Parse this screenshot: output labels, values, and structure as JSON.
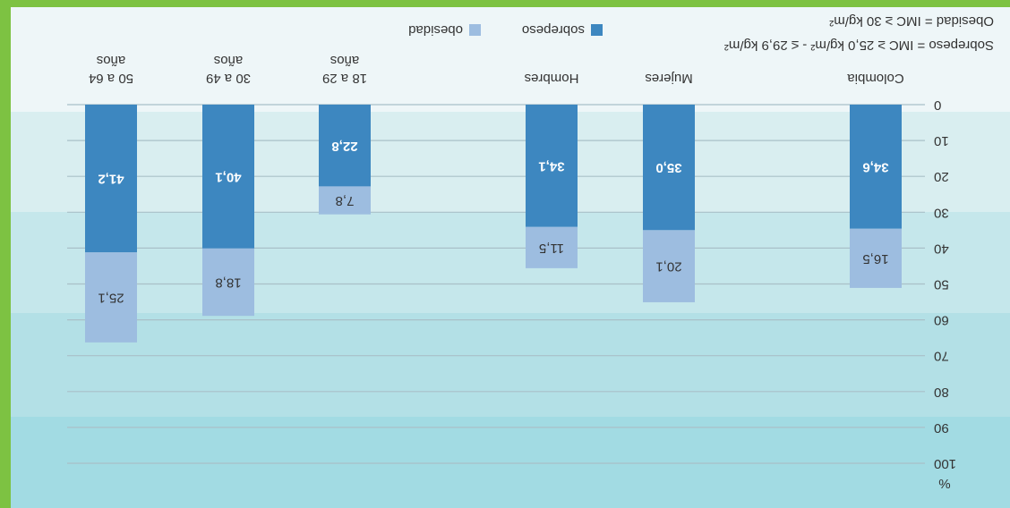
{
  "chart_data": {
    "type": "stacked_bar",
    "categories": [
      "Colombia",
      "Mujeres",
      "Hombres",
      "18 a 29 años",
      "30 a 49 años",
      "50 a 64 años"
    ],
    "series": [
      {
        "name": "sobrepeso",
        "color": "#3d87c0",
        "values": [
          34.6,
          35.0,
          34.1,
          22.8,
          40.1,
          41.2
        ],
        "value_labels": [
          "34,6",
          "35,0",
          "34,1",
          "22,8",
          "40,1",
          "41,2"
        ]
      },
      {
        "name": "obesidad",
        "color": "#9dbde0",
        "values": [
          16.5,
          20.1,
          11.5,
          7.8,
          18.8,
          25.1
        ],
        "value_labels": [
          "16,5",
          "20,1",
          "11,5",
          "7,8",
          "18,8",
          "25,1"
        ]
      }
    ],
    "y_label": "%",
    "ylim": [
      0,
      100
    ],
    "yticks": [
      0,
      10,
      20,
      30,
      40,
      50,
      60,
      70,
      80,
      90,
      100
    ],
    "grid": true,
    "annotations": [
      "Sobrepeso = IMC ≥ 25,0 kg/m² - ≤ 29,9 kg/m²",
      "Obesidad = IMC ≥ 30 kg/m²"
    ],
    "rotation": 180
  }
}
